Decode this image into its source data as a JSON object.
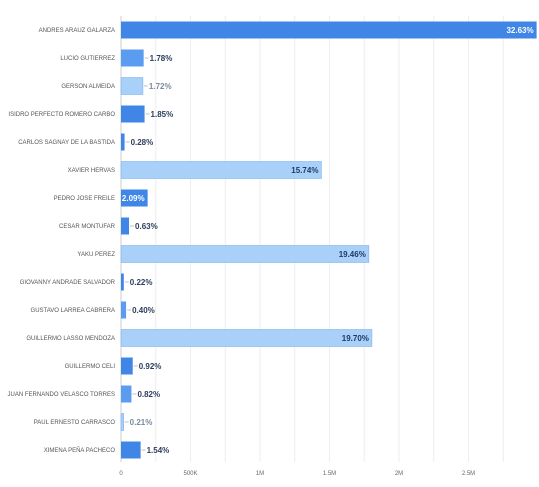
{
  "chart_data": {
    "type": "bar",
    "orientation": "horizontal",
    "title": "",
    "xlabel": "",
    "ylabel": "",
    "xlim": [
      0,
      3000000
    ],
    "grid": true,
    "legend": "none",
    "x_ticks": [
      {
        "value": 0,
        "label": "0"
      },
      {
        "value": 500000,
        "label": "500K"
      },
      {
        "value": 1000000,
        "label": "1M"
      },
      {
        "value": 1500000,
        "label": "1.5M"
      },
      {
        "value": 2000000,
        "label": "2M"
      },
      {
        "value": 2500000,
        "label": "2.5M"
      }
    ],
    "categories": [
      "ANDRES ARAUZ GALARZA",
      "LUCIO GUTIERREZ",
      "GERSON ALMEIDA",
      "ISIDRO PERFECTO ROMERO CARBO",
      "CARLOS SAGNAY DE LA BASTIDA",
      "XAVIER HERVAS",
      "PEDRO JOSE FREILE",
      "CESAR MONTUFAR",
      "YAKU PEREZ",
      "GIOVANNY ANDRADE SALVADOR",
      "GUSTAVO LARREA CABRERA",
      "GUILLERMO LASSO MENDOZA",
      "GUILLERMO CELI",
      "JUAN FERNANDO VELASCO TORRES",
      "PAUL ERNESTO CARRASCO",
      "XIMENA PEÑA PACHECO"
    ],
    "values": [
      2990000,
      163000,
      157500,
      169500,
      25700,
      1442000,
      191500,
      57700,
      1783000,
      20200,
      36600,
      1805000,
      84300,
      75100,
      19200,
      141100
    ],
    "data_labels": [
      "32.63%",
      "1.78%",
      "1.72%",
      "1.85%",
      "0.28%",
      "15.74%",
      "2.09%",
      "0.63%",
      "19.46%",
      "0.22%",
      "0.40%",
      "19.70%",
      "0.92%",
      "0.82%",
      "0.21%",
      "1.54%"
    ],
    "bar_colors": [
      "#3f86e6",
      "#5b9cf0",
      "#a9d0f8",
      "#3f86e6",
      "#3f86e6",
      "#a9d0f8",
      "#3f86e6",
      "#3f86e6",
      "#a9d0f8",
      "#3f86e6",
      "#5b9cf0",
      "#a9d0f8",
      "#3f86e6",
      "#5b9cf0",
      "#a9d0f8",
      "#3f86e6"
    ],
    "label_inside": [
      true,
      false,
      false,
      false,
      false,
      true,
      true,
      false,
      true,
      false,
      false,
      true,
      false,
      false,
      false,
      false
    ]
  }
}
